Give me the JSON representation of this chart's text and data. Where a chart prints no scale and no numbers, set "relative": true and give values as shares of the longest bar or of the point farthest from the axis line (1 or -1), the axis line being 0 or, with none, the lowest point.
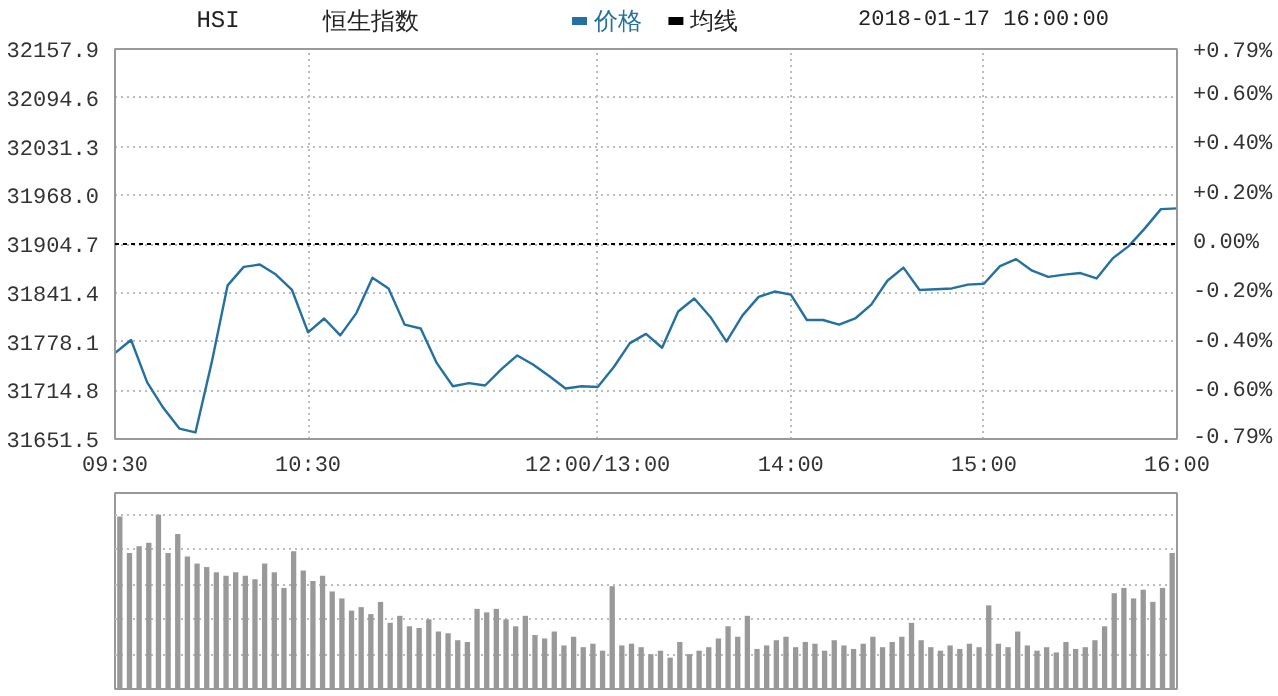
{
  "chart_data": [
    {
      "type": "line",
      "title": "HSI",
      "subtitle": "恒生指数",
      "annotations": [
        "2018-01-17 16:00:00"
      ],
      "categories": [
        "09:30",
        null,
        null,
        null,
        null,
        null,
        null,
        null,
        null,
        null,
        null,
        null,
        "10:30",
        null,
        null,
        null,
        null,
        null,
        null,
        null,
        null,
        null,
        null,
        null,
        null,
        null,
        null,
        null,
        null,
        null,
        "12:00/13:00",
        null,
        null,
        null,
        null,
        null,
        null,
        null,
        null,
        null,
        null,
        null,
        "14:00",
        null,
        null,
        null,
        null,
        null,
        null,
        null,
        null,
        null,
        null,
        null,
        "15:00",
        null,
        null,
        null,
        null,
        null,
        null,
        null,
        null,
        null,
        null,
        null,
        "16:00"
      ],
      "series": [
        {
          "name": "价格",
          "color": "#2470a0",
          "values": [
            31763,
            31780,
            31725,
            31692,
            31665,
            31660,
            31750,
            31851,
            31875,
            31878,
            31865,
            31845,
            31790,
            31808,
            31786,
            31815,
            31861,
            31847,
            31800,
            31795,
            31750,
            31720,
            31724,
            31721,
            31742,
            31760,
            31748,
            31733,
            31717,
            31720,
            31719,
            31745,
            31776,
            31788,
            31770,
            31817,
            31834,
            31810,
            31778,
            31812,
            31836,
            31843,
            31839,
            31806,
            31806,
            31800,
            31808,
            31826,
            31857,
            31874,
            31845,
            31846,
            31847,
            31852,
            31853,
            31876,
            31885,
            31870,
            31862,
            31865,
            31867,
            31860,
            31886,
            31902,
            31925,
            31950,
            31951
          ]
        },
        {
          "name": "均线",
          "color": "#000000",
          "values": [
            null,
            null,
            null,
            null,
            null,
            null,
            null,
            null,
            null,
            null,
            null,
            null,
            null,
            null,
            null,
            null,
            null,
            null,
            null,
            null,
            null,
            null,
            null,
            null,
            null,
            null,
            null,
            null,
            null,
            null,
            null,
            null,
            null,
            null,
            null,
            null,
            null,
            null,
            null,
            null,
            null,
            null,
            null,
            null,
            null,
            null,
            null,
            null,
            null,
            null,
            null,
            null,
            null,
            null,
            null,
            null,
            null,
            null,
            null,
            null,
            null,
            null,
            null,
            null,
            null,
            null,
            null
          ]
        }
      ],
      "ylim": [
        31651.5,
        32157.9
      ],
      "yticks": [
        31651.5,
        31714.8,
        31778.1,
        31841.4,
        31904.7,
        {
          "value": 31968.0,
          "label": "31968.0"
        },
        32031.3,
        32094.6,
        32157.9
      ],
      "y2lim": [
        -0.79,
        0.79
      ],
      "y2ticks": [
        {
          "value": -0.79,
          "label": "-0.79%"
        },
        {
          "value": -0.6,
          "label": "-0.60%"
        },
        {
          "value": -0.4,
          "label": "-0.40%"
        },
        {
          "value": -0.2,
          "label": "-0.20%"
        },
        {
          "value": 0,
          "label": "0.00%"
        },
        {
          "value": 0.2,
          "label": "+0.20%"
        },
        {
          "value": 0.4,
          "label": "+0.40%"
        },
        {
          "value": 0.6,
          "label": "+0.60%"
        },
        {
          "value": 0.79,
          "label": "+0.79%"
        }
      ],
      "ref_lines": [
        {
          "axis": "y",
          "value": 31904.7,
          "color": "#000000",
          "line_style": "dashed"
        }
      ],
      "grid": true,
      "legend": "top"
    },
    {
      "type": "bar",
      "relative": true,
      "color": "#999999",
      "categories": [
        null,
        null,
        null,
        null,
        null,
        null,
        null,
        null,
        null,
        null,
        null,
        null,
        null,
        null,
        null,
        null,
        null,
        null,
        null,
        null,
        null,
        null,
        null,
        null,
        null,
        null,
        null,
        null,
        null,
        null,
        null,
        null,
        null,
        null,
        null,
        null,
        null,
        null,
        null,
        null,
        null,
        null,
        null,
        null,
        null,
        null,
        null,
        null,
        null,
        null,
        null,
        null,
        null,
        null,
        null,
        null,
        null,
        null,
        null,
        null,
        null,
        null,
        null,
        null,
        null,
        null,
        null,
        null,
        null,
        null,
        null,
        null,
        null,
        null,
        null,
        null,
        null,
        null,
        null,
        null,
        null,
        null,
        null,
        null,
        null,
        null,
        null,
        null,
        null,
        null,
        null,
        null,
        null,
        null,
        null,
        null,
        null,
        null,
        null,
        null,
        null,
        null,
        null,
        null,
        null,
        null,
        null,
        null,
        null,
        null
      ],
      "values": [
        0.99,
        0.78,
        0.82,
        0.84,
        1.0,
        0.78,
        0.89,
        0.76,
        0.72,
        0.7,
        0.67,
        0.65,
        0.67,
        0.65,
        0.63,
        0.72,
        0.67,
        0.58,
        0.79,
        0.68,
        0.62,
        0.65,
        0.56,
        0.52,
        0.45,
        0.47,
        0.43,
        0.5,
        0.38,
        0.42,
        0.36,
        0.35,
        0.4,
        0.33,
        0.32,
        0.28,
        0.27,
        0.46,
        0.44,
        0.46,
        0.4,
        0.36,
        0.42,
        0.31,
        0.29,
        0.33,
        0.25,
        0.3,
        0.24,
        0.26,
        0.22,
        0.59,
        0.25,
        0.26,
        0.24,
        0.2,
        0.22,
        0.18,
        0.27,
        0.2,
        0.22,
        0.24,
        0.29,
        0.36,
        0.3,
        0.42,
        0.23,
        0.25,
        0.28,
        0.3,
        0.24,
        0.27,
        0.26,
        0.22,
        0.28,
        0.25,
        0.23,
        0.26,
        0.3,
        0.24,
        0.27,
        0.3,
        0.38,
        0.28,
        0.24,
        0.22,
        0.25,
        0.23,
        0.26,
        0.24,
        0.48,
        0.26,
        0.24,
        0.33,
        0.25,
        0.22,
        0.24,
        0.21,
        0.27,
        0.23,
        0.24,
        0.28,
        0.36,
        0.55,
        0.58,
        0.52,
        0.57,
        0.5,
        0.58,
        0.78
      ],
      "grid": "y"
    }
  ]
}
